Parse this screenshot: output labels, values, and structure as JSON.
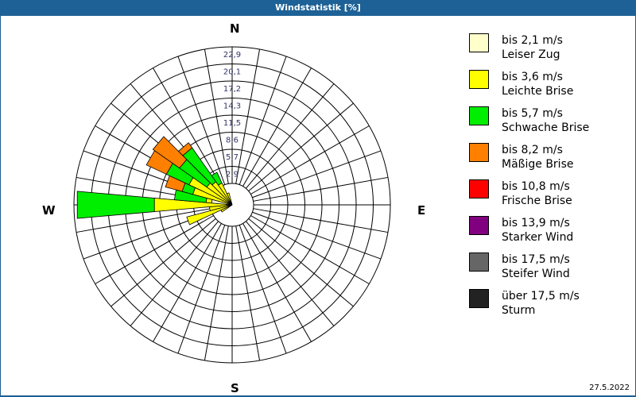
{
  "header": {
    "title": "Windstatistik [%]"
  },
  "compass": {
    "n": "N",
    "e": "E",
    "s": "S",
    "w": "W"
  },
  "footer": {
    "date": "27.5.2022"
  },
  "legend": [
    {
      "speed": "bis 2,1 m/s",
      "name": "Leiser Zug",
      "color": "#ffffcc"
    },
    {
      "speed": "bis 3,6 m/s",
      "name": "Leichte Brise",
      "color": "#ffff00"
    },
    {
      "speed": "bis 5,7 m/s",
      "name": "Schwache Brise",
      "color": "#00ee00"
    },
    {
      "speed": "bis 8,2 m/s",
      "name": "Mäßige Brise",
      "color": "#ff8000"
    },
    {
      "speed": "bis 10,8 m/s",
      "name": "Frische Brise",
      "color": "#ff0000"
    },
    {
      "speed": "bis 13,9 m/s",
      "name": "Starker Wind",
      "color": "#800080"
    },
    {
      "speed": "bis 17,5 m/s",
      "name": "Steifer Wind",
      "color": "#666666"
    },
    {
      "speed": "über 17,5 m/s",
      "name": "Sturm",
      "color": "#222222"
    }
  ],
  "chart_data": {
    "type": "wind-rose",
    "title": "Windstatistik [%]",
    "radial_ticks": [
      "2,9",
      "5,7",
      "8,6",
      "11,5",
      "14,3",
      "17,2",
      "20,1",
      "22,9"
    ],
    "rmax": 22.9,
    "sector_width_deg": 10,
    "categories": [
      "bis 2,1 m/s",
      "bis 3,6 m/s",
      "bis 5,7 m/s",
      "bis 8,2 m/s",
      "bis 10,8 m/s",
      "bis 13,9 m/s",
      "bis 17,5 m/s",
      "über 17,5 m/s"
    ],
    "sectors": [
      {
        "dir": 240,
        "values": [
          0.3,
          1.5,
          0,
          0,
          0,
          0,
          0,
          0
        ]
      },
      {
        "dir": 250,
        "values": [
          0.3,
          6.5,
          0,
          0,
          0,
          0,
          0,
          0
        ]
      },
      {
        "dir": 260,
        "values": [
          0.3,
          3.0,
          0,
          0,
          0,
          0,
          0,
          0
        ]
      },
      {
        "dir": 270,
        "values": [
          0.8,
          10.5,
          11.2,
          0,
          0,
          0,
          0,
          0
        ]
      },
      {
        "dir": 280,
        "values": [
          3.0,
          0.8,
          4.6,
          0,
          0,
          0,
          0,
          0
        ]
      },
      {
        "dir": 290,
        "values": [
          0.3,
          5.6,
          1.6,
          2.5,
          0,
          0,
          0,
          0
        ]
      },
      {
        "dir": 300,
        "values": [
          0.3,
          6.6,
          3.6,
          3.2,
          0,
          0,
          0,
          0
        ]
      },
      {
        "dir": 310,
        "values": [
          0.3,
          4.2,
          4.8,
          4.7,
          0,
          0,
          0,
          0
        ]
      },
      {
        "dir": 320,
        "values": [
          0.3,
          3.8,
          6.0,
          0.9,
          0,
          0,
          0,
          0
        ]
      },
      {
        "dir": 330,
        "values": [
          0.3,
          3.2,
          1.7,
          0,
          0,
          0,
          0,
          0
        ]
      },
      {
        "dir": 340,
        "values": [
          0.3,
          1.5,
          0,
          0,
          0,
          0,
          0,
          0
        ]
      }
    ]
  }
}
